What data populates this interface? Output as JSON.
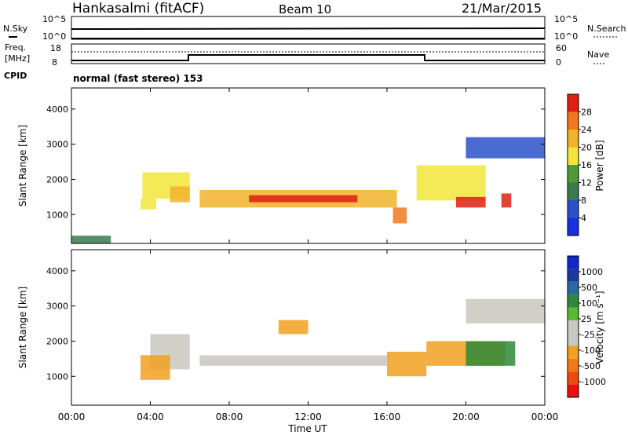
{
  "header": {
    "station": "Hankasalmi (fitACF)",
    "beam": "Beam 10",
    "date": "21/Mar/2015"
  },
  "noise_panel": {
    "left_label": "N.Sky",
    "right_label": "N.Search",
    "left_ticks": [
      "10^5",
      "10^0"
    ],
    "right_ticks": [
      "10^5",
      "10^0"
    ]
  },
  "freq_panel": {
    "left_label_1": "Freq.",
    "left_label_2": "[MHz]",
    "right_label": "Nave",
    "left_ticks": [
      "18",
      "8"
    ],
    "right_ticks": [
      "60",
      "0"
    ]
  },
  "cpid": {
    "label": "CPID",
    "value": "normal (fast stereo) 153"
  },
  "colors": {
    "power_scale": [
      "#1a2fe0",
      "#2a52c8",
      "#3a7a4e",
      "#4e9a3a",
      "#f2e53a",
      "#f2b32a",
      "#f07820",
      "#e02010"
    ],
    "velocity_scale": [
      "#e81010",
      "#f04a10",
      "#f07a18",
      "#f0a020",
      "#c8c8c0",
      "#c8c8c0",
      "#5ab830",
      "#2e8a3a",
      "#2a6aa0",
      "#1a3aa0",
      "#1028c8"
    ]
  },
  "chart_data": [
    {
      "type": "heatmap",
      "panel": "power",
      "xlabel": "Time UT",
      "ylabel": "Slant Range [km]",
      "x_ticks": [
        "00:00",
        "04:00",
        "08:00",
        "12:00",
        "16:00",
        "20:00",
        "00:00"
      ],
      "x_range_hours": [
        0,
        24
      ],
      "y_ticks": [
        1000,
        2000,
        3000,
        4000
      ],
      "ylim": [
        180,
        4600
      ],
      "colorbar": {
        "label": "Power [dB]",
        "ticks": [
          4,
          8,
          12,
          16,
          20,
          24,
          28
        ],
        "range": [
          0,
          32
        ]
      },
      "bands": [
        {
          "time_hours": [
            3.5,
            4.3
          ],
          "range_km": [
            1150,
            1450
          ],
          "value_db": 16
        },
        {
          "time_hours": [
            3.6,
            6.0
          ],
          "range_km": [
            1450,
            2200
          ],
          "value_db": 18
        },
        {
          "time_hours": [
            5.0,
            6.0
          ],
          "range_km": [
            1350,
            1800
          ],
          "value_db": 22
        },
        {
          "time_hours": [
            6.5,
            16.5
          ],
          "range_km": [
            1200,
            1700
          ],
          "value_db": 22
        },
        {
          "time_hours": [
            9.0,
            14.5
          ],
          "range_km": [
            1350,
            1550
          ],
          "value_db": 28
        },
        {
          "time_hours": [
            16.3,
            17.0
          ],
          "range_km": [
            750,
            1200
          ],
          "value_db": 24
        },
        {
          "time_hours": [
            17.5,
            21.0
          ],
          "range_km": [
            1400,
            2400
          ],
          "value_db": 16
        },
        {
          "time_hours": [
            19.5,
            21.0
          ],
          "range_km": [
            1200,
            1500
          ],
          "value_db": 28
        },
        {
          "time_hours": [
            21.8,
            22.3
          ],
          "range_km": [
            1200,
            1600
          ],
          "value_db": 28
        },
        {
          "time_hours": [
            0.0,
            2.0
          ],
          "range_km": [
            180,
            400
          ],
          "value_db": 10
        },
        {
          "time_hours": [
            20.0,
            24.0
          ],
          "range_km": [
            2600,
            3200
          ],
          "value_db": 6
        }
      ]
    },
    {
      "type": "heatmap",
      "panel": "velocity",
      "xlabel": "Time UT",
      "ylabel": "Slant Range [km]",
      "x_ticks": [
        "00:00",
        "04:00",
        "08:00",
        "12:00",
        "16:00",
        "20:00",
        "00:00"
      ],
      "x_range_hours": [
        0,
        24
      ],
      "y_ticks": [
        1000,
        2000,
        3000,
        4000
      ],
      "ylim": [
        180,
        4600
      ],
      "colorbar": {
        "label": "Velocity [m s⁻¹]",
        "ticks": [
          1000,
          500,
          100,
          25,
          -25,
          -100,
          -500,
          -1000
        ],
        "range": [
          -1000,
          1000
        ]
      },
      "bands": [
        {
          "time_hours": [
            4.0,
            6.0
          ],
          "range_km": [
            1200,
            2200
          ],
          "value_ms": 0
        },
        {
          "time_hours": [
            6.5,
            16.0
          ],
          "range_km": [
            1300,
            1600
          ],
          "value_ms": 0
        },
        {
          "time_hours": [
            3.5,
            5.0
          ],
          "range_km": [
            900,
            1600
          ],
          "value_ms": -300
        },
        {
          "time_hours": [
            10.5,
            12.0
          ],
          "range_km": [
            2200,
            2600
          ],
          "value_ms": -300
        },
        {
          "time_hours": [
            16.0,
            18.0
          ],
          "range_km": [
            1000,
            1700
          ],
          "value_ms": -300
        },
        {
          "time_hours": [
            18.0,
            22.0
          ],
          "range_km": [
            1300,
            2000
          ],
          "value_ms": -300
        },
        {
          "time_hours": [
            20.0,
            22.5
          ],
          "range_km": [
            1300,
            2000
          ],
          "value_ms": 300
        },
        {
          "time_hours": [
            20.0,
            24.0
          ],
          "range_km": [
            2500,
            3200
          ],
          "value_ms": 0
        }
      ]
    }
  ]
}
